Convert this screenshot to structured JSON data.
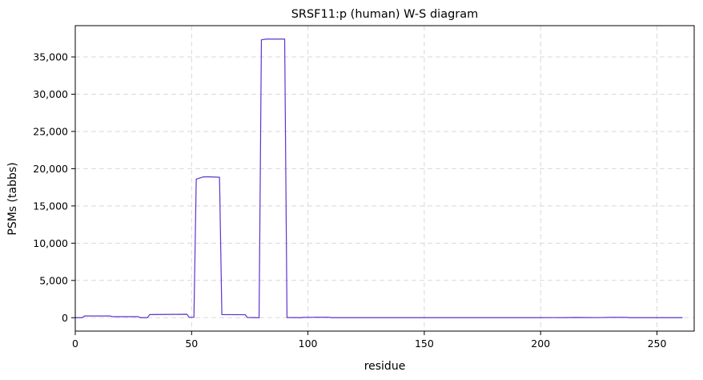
{
  "chart_data": {
    "type": "line",
    "title": "SRSF11:p (human) W-S diagram",
    "xlabel": "residue",
    "ylabel": "PSMs (tabbs)",
    "xlim": [
      0,
      266
    ],
    "ylim": [
      -1800,
      39200
    ],
    "xticks": [
      0,
      50,
      100,
      150,
      200,
      250
    ],
    "yticks": [
      0,
      5000,
      10000,
      15000,
      20000,
      25000,
      30000,
      35000
    ],
    "ytick_labels": [
      "0",
      "5,000",
      "10,000",
      "15,000",
      "20,000",
      "25,000",
      "30,000",
      "35,000"
    ],
    "grid": true,
    "line_color": "#5b35c9",
    "series": [
      {
        "x": [
          0,
          3,
          4,
          15,
          16,
          27,
          28,
          31,
          32,
          48,
          49,
          51,
          52,
          55,
          58,
          62,
          63,
          73,
          74,
          78,
          79,
          80,
          82,
          89,
          90,
          91,
          92,
          97,
          98,
          102,
          103,
          109,
          110,
          200,
          205,
          210,
          215,
          225,
          230,
          237,
          238,
          261
        ],
        "y": [
          0,
          0,
          230,
          230,
          140,
          140,
          0,
          0,
          420,
          460,
          50,
          50,
          18600,
          18900,
          18900,
          18850,
          420,
          400,
          30,
          0,
          0,
          37300,
          37400,
          37400,
          37400,
          20,
          20,
          0,
          40,
          50,
          60,
          60,
          0,
          0,
          10,
          0,
          30,
          10,
          40,
          40,
          0,
          0
        ]
      }
    ]
  }
}
